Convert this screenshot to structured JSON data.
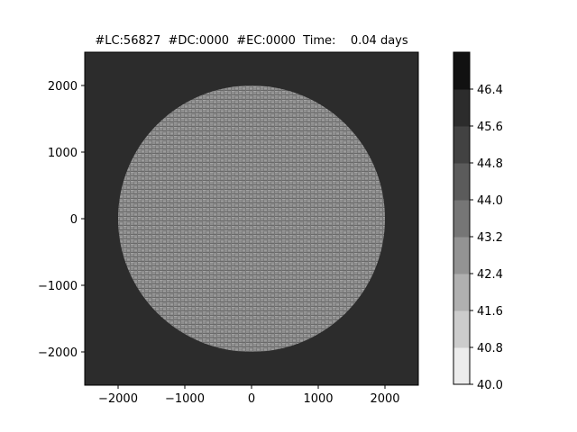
{
  "chart_data": {
    "type": "heatmap",
    "title": "#LC:56827  #DC:0000  #EC:0000  Time:    0.04 days",
    "xlim": [
      -2500,
      2500
    ],
    "ylim": [
      -2500,
      2500
    ],
    "x_ticks": [
      -2000,
      -1000,
      0,
      1000,
      2000
    ],
    "x_tick_labels": [
      "−2000",
      "−1000",
      "0",
      "1000",
      "2000"
    ],
    "y_ticks": [
      2000,
      1000,
      0,
      -1000,
      -2000
    ],
    "y_tick_labels": [
      "2000",
      "1000",
      "0",
      "−1000",
      "−2000"
    ],
    "grid": false,
    "field": {
      "background_value": 46.4,
      "disk_center": [
        0,
        0
      ],
      "disk_radius": 2000,
      "disk_value_range": [
        42.4,
        43.2
      ],
      "pattern": "fine horizontal brick-like mesh texture inside disk"
    },
    "colorbar": {
      "levels": [
        40.0,
        40.8,
        41.6,
        42.4,
        43.2,
        44.0,
        44.8,
        45.6,
        46.4
      ],
      "tick_labels": [
        "40.0",
        "40.8",
        "41.6",
        "42.4",
        "43.2",
        "44.0",
        "44.8",
        "45.6",
        "46.4"
      ],
      "colors": [
        "#ececec",
        "#cccccc",
        "#b0b0b0",
        "#939393",
        "#767676",
        "#5b5b5b",
        "#424242",
        "#2c2c2c",
        "#111111"
      ]
    }
  }
}
